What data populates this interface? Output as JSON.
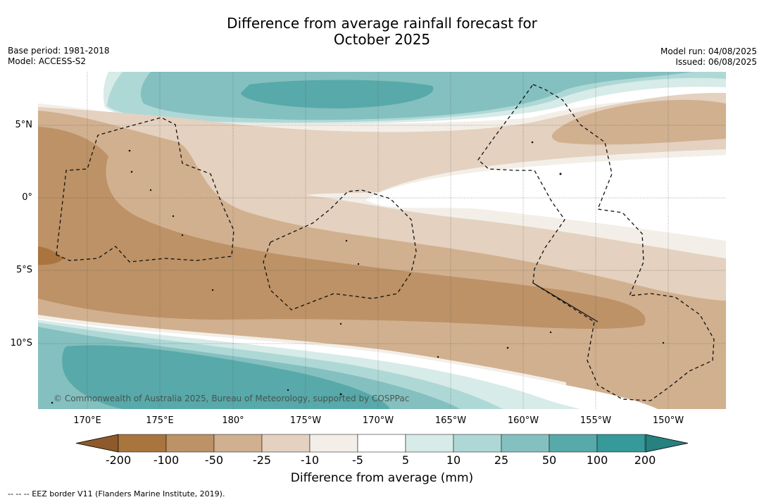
{
  "title_line1": "Difference from average rainfall forecast for",
  "title_line2": "October 2025",
  "meta_left": {
    "base_period": "Base period: 1981-2018",
    "model": "Model: ACCESS-S2"
  },
  "meta_right": {
    "model_run": "Model run: 04/08/2025",
    "issued": "Issued: 06/08/2025"
  },
  "lat_labels": [
    "5°N",
    "0°",
    "5°S",
    "10°S"
  ],
  "lon_labels": [
    "170°E",
    "175°E",
    "180°",
    "175°W",
    "170°W",
    "165°W",
    "160°W",
    "155°W",
    "150°W"
  ],
  "copyright": "© Commonwealth of Australia 2025, Bureau of Meteorology, supported by COSPPac",
  "colorbar": {
    "ticks": [
      "-200",
      "-100",
      "-50",
      "-25",
      "-10",
      "-5",
      "5",
      "10",
      "25",
      "50",
      "100",
      "200"
    ],
    "colors": [
      "#a9743e",
      "#bc9266",
      "#d1b08f",
      "#e4d1bf",
      "#f3efe8",
      "#ffffff",
      "#d7ebe8",
      "#aed8d6",
      "#84c0bf",
      "#58a9a9",
      "#36999a"
    ],
    "low_extend_color": "#8e5a2c",
    "high_extend_color": "#27817f",
    "title": "Difference from average (mm)"
  },
  "footnote": "-- -- -- EEZ border V11 (Flanders Marine Institute, 2019)."
}
